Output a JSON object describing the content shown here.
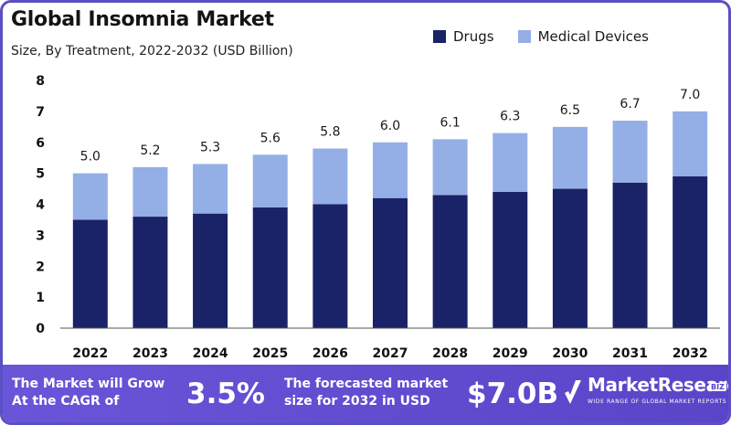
{
  "header": {
    "title": "Global Insomnia Market",
    "subtitle": "Size, By Treatment, 2022-2032 (USD Billion)"
  },
  "legend": [
    {
      "label": "Drugs",
      "color": "#1a2268"
    },
    {
      "label": "Medical Devices",
      "color": "#94aee6"
    }
  ],
  "chart_data": {
    "type": "bar",
    "stacked": true,
    "title": "Global Insomnia Market",
    "subtitle": "Size, By Treatment, 2022-2032 (USD Billion)",
    "categories": [
      "2022",
      "2023",
      "2024",
      "2025",
      "2026",
      "2027",
      "2028",
      "2029",
      "2030",
      "2031",
      "2032"
    ],
    "series": [
      {
        "name": "Drugs",
        "color": "#1a2268",
        "values": [
          3.5,
          3.6,
          3.7,
          3.9,
          4.0,
          4.2,
          4.3,
          4.4,
          4.5,
          4.7,
          4.9
        ]
      },
      {
        "name": "Medical Devices",
        "color": "#94aee6",
        "values": [
          1.5,
          1.6,
          1.6,
          1.7,
          1.8,
          1.8,
          1.8,
          1.9,
          2.0,
          2.0,
          2.1
        ]
      }
    ],
    "totals": [
      "5.0",
      "5.2",
      "5.3",
      "5.6",
      "5.8",
      "6.0",
      "6.1",
      "6.3",
      "6.5",
      "6.7",
      "7.0"
    ],
    "yticks": [
      "0",
      "1",
      "2",
      "3",
      "4",
      "5",
      "6",
      "7",
      "8"
    ],
    "ylim": [
      0,
      8
    ],
    "grid": false,
    "legend_position": "top-right"
  },
  "footer": {
    "cagr_text_line1": "The Market will Grow",
    "cagr_text_line2": "At the CAGR of",
    "cagr_value": "3.5%",
    "forecast_text_line1": "The forecasted market",
    "forecast_text_line2": "size for 2032 in USD",
    "forecast_value": "$7.0B",
    "brand_name": "MarketResearch",
    "brand_badge": "BIZ",
    "brand_tagline": "WIDE RANGE OF GLOBAL MARKET REPORTS"
  }
}
